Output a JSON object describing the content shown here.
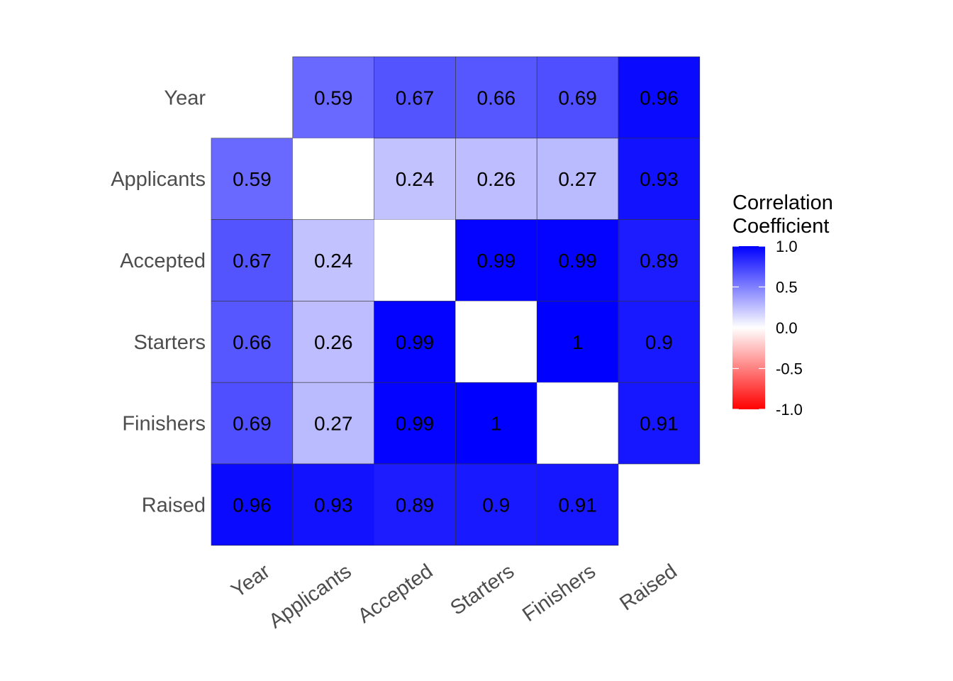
{
  "chart_data": {
    "type": "heatmap",
    "title": "",
    "xlabel": "",
    "ylabel": "",
    "variables": [
      "Year",
      "Applicants",
      "Accepted",
      "Starters",
      "Finishers",
      "Raised"
    ],
    "x_ticks": [
      "Year",
      "Applicants",
      "Accepted",
      "Starters",
      "Finishers",
      "Raised"
    ],
    "y_ticks": [
      "Year",
      "Applicants",
      "Accepted",
      "Starters",
      "Finishers",
      "Raised"
    ],
    "matrix": [
      [
        null,
        0.59,
        0.67,
        0.66,
        0.69,
        0.96
      ],
      [
        0.59,
        null,
        0.24,
        0.26,
        0.27,
        0.93
      ],
      [
        0.67,
        0.24,
        null,
        0.99,
        0.99,
        0.89
      ],
      [
        0.66,
        0.26,
        0.99,
        null,
        1,
        0.9
      ],
      [
        0.69,
        0.27,
        0.99,
        1,
        null,
        0.91
      ],
      [
        0.96,
        0.93,
        0.89,
        0.9,
        0.91,
        null
      ]
    ],
    "blank_cells": [
      [
        0,
        0
      ],
      [
        5,
        5
      ]
    ],
    "legend": {
      "title_lines": [
        "Correlation",
        "Coefficient"
      ],
      "ticks": [
        1.0,
        0.5,
        0.0,
        -0.5,
        -1.0
      ],
      "tick_labels": [
        "1.0",
        "0.5",
        "0.0",
        "-0.5",
        "-1.0"
      ],
      "range": [
        -1,
        1
      ],
      "placement": "right"
    },
    "colors": {
      "low": "#ff0000",
      "mid": "#ffffff",
      "high": "#0000ff",
      "border": "#333333"
    }
  }
}
